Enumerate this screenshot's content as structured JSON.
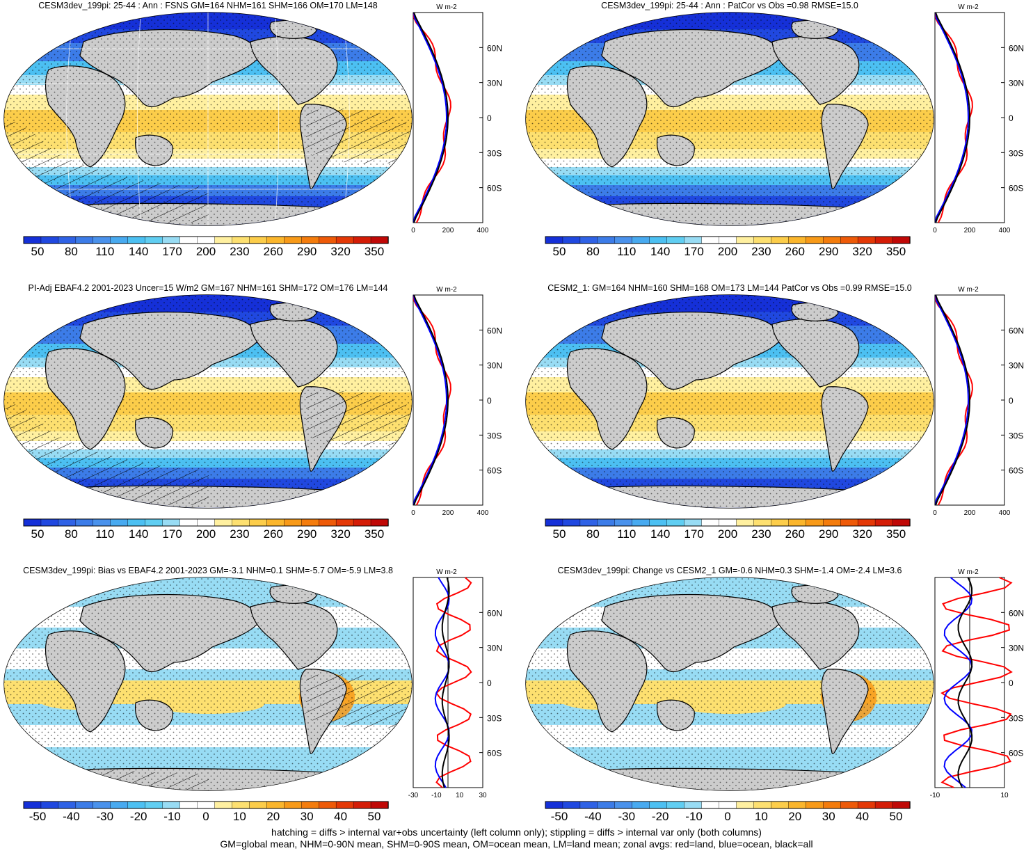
{
  "palette": {
    "full": [
      "#1530d8",
      "#2048e0",
      "#2f62e6",
      "#3c7ce8",
      "#4a92ec",
      "#48aaf0",
      "#4cc0f2",
      "#60cef2",
      "#98dcf4",
      "#ffffff",
      "#ffffff",
      "#fff0a0",
      "#fde070",
      "#fccd4a",
      "#fbb62c",
      "#f89a18",
      "#f47c0c",
      "#ee5a08",
      "#e43806",
      "#d41c06",
      "#c00806"
    ],
    "ocean_map": "#2c74e8",
    "ocean_bias": "#9ad8f4",
    "land": "#cccccc",
    "zonal_land": "#ff0000",
    "zonal_ocean": "#0000ff",
    "zonal_all": "#000000"
  },
  "colorbars": {
    "abs": {
      "labels": [
        "50",
        "80",
        "110",
        "140",
        "170",
        "200",
        "230",
        "260",
        "290",
        "320",
        "350"
      ]
    },
    "diff": {
      "labels": [
        "-50",
        "-40",
        "-30",
        "-20",
        "-10",
        "0",
        "10",
        "20",
        "30",
        "40",
        "50"
      ]
    }
  },
  "zonal_profile": {
    "unit_label": "W m-2",
    "lat_labels": [
      "60N",
      "30N",
      "0",
      "30S",
      "60S"
    ],
    "abs_x_ticks": [
      "0",
      "200",
      "400"
    ],
    "bias_x_ticks": [
      "-30",
      "-10",
      "10",
      "30"
    ],
    "change_x_ticks": [
      "-10",
      "10"
    ]
  },
  "panels": [
    {
      "title": "CESM3dev_199pi: 25-44 : Ann : FSNS GM=164 NHM=161 SHM=166 OM=170 LM=148",
      "kind": "abs",
      "hatch": true
    },
    {
      "title": "CESM3dev_199pi: 25-44 : Ann : PatCor vs Obs =0.98 RMSE=15.0",
      "kind": "abs",
      "hatch": false
    },
    {
      "title": "PI-Adj EBAF4.2 2001-2023 Uncer=15 W/m2 GM=167 NHM=161 SHM=172 OM=176 LM=144",
      "kind": "abs",
      "hatch": true
    },
    {
      "title": "CESM2_1: GM=164 NHM=160 SHM=168 OM=173 LM=144 PatCor vs Obs =0.99 RMSE=15.0",
      "kind": "abs",
      "hatch": false
    },
    {
      "title": "CESM3dev_199pi: Bias vs EBAF4.2 2001-2023 GM=-3.1 NHM=0.1 SHM=-5.7 OM=-5.9 LM=3.8",
      "kind": "bias",
      "hatch": true
    },
    {
      "title": "CESM3dev_199pi: Change vs CESM2_1 GM=-0.6 NHM=0.3 SHM=-1.4 OM=-2.4 LM=3.6",
      "kind": "change",
      "hatch": false
    }
  ],
  "footer": {
    "line1": "hatching = diffs > internal var+obs uncertainty (left column only); stippling = diffs > internal var only (both columns)",
    "line2": "GM=global mean, NHM=0-90N mean, SHM=0-90S mean, OM=ocean mean, LM=land mean; zonal avgs: red=land, blue=ocean, black=all"
  }
}
